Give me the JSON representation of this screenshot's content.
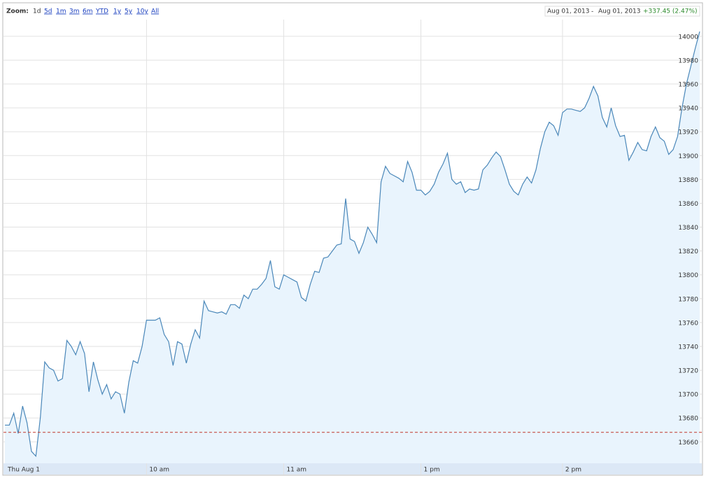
{
  "toolbar": {
    "zoom_label": "Zoom:",
    "zoom_options": [
      "1d",
      "5d",
      "1m",
      "3m",
      "6m",
      "YTD",
      "1y",
      "5y",
      "10y",
      "All"
    ],
    "date_from": "Aug 01, 2013",
    "separator": "-",
    "date_to": "Aug 01, 2013",
    "change": "+337.45 (2.47%)"
  },
  "chart_data": {
    "type": "area",
    "categories": [
      "Thu Aug 1",
      null,
      null,
      null,
      null,
      null,
      null,
      null,
      null,
      null,
      null,
      null,
      null,
      null,
      null,
      null,
      null,
      null,
      null,
      null,
      null,
      null,
      null,
      null,
      null,
      null,
      null,
      null,
      null,
      null,
      null,
      null,
      "10 am",
      null,
      null,
      null,
      null,
      null,
      null,
      null,
      null,
      null,
      null,
      null,
      null,
      null,
      null,
      null,
      null,
      null,
      null,
      null,
      null,
      null,
      null,
      null,
      null,
      null,
      null,
      null,
      null,
      null,
      null,
      "11 am",
      null,
      null,
      null,
      null,
      null,
      null,
      null,
      null,
      null,
      null,
      null,
      null,
      null,
      null,
      null,
      null,
      null,
      null,
      null,
      null,
      null,
      null,
      null,
      null,
      null,
      null,
      null,
      null,
      null,
      null,
      "1 pm",
      null,
      null,
      null,
      null,
      null,
      null,
      null,
      null,
      null,
      null,
      null,
      null,
      null,
      null,
      null,
      null,
      null,
      null,
      null,
      null,
      null,
      null,
      null,
      null,
      null,
      null,
      null,
      null,
      null,
      null,
      null,
      "2 pm",
      null,
      null,
      null,
      null,
      null,
      null,
      null,
      null,
      null,
      null,
      null,
      null,
      null,
      null,
      null,
      null,
      null,
      null,
      null,
      null,
      null,
      null,
      null,
      null,
      null,
      null,
      null,
      null,
      null,
      null,
      null
    ],
    "values": [
      13674,
      13674,
      13684,
      13667,
      13690,
      13676,
      13652,
      13648,
      13680,
      13727,
      13722,
      13720,
      13711,
      13713,
      13745,
      13740,
      13733,
      13744,
      13734,
      13702,
      13727,
      13712,
      13700,
      13708,
      13696,
      13702,
      13700,
      13684,
      13710,
      13728,
      13726,
      13740,
      13762,
      13762,
      13762,
      13764,
      13750,
      13744,
      13724,
      13744,
      13742,
      13726,
      13742,
      13754,
      13747,
      13778,
      13770,
      13769,
      13768,
      13769,
      13767,
      13775,
      13775,
      13772,
      13783,
      13780,
      13788,
      13788,
      13792,
      13797,
      13812,
      13790,
      13788,
      13800,
      13798,
      13796,
      13794,
      13781,
      13778,
      13792,
      13803,
      13802,
      13814,
      13815,
      13820,
      13825,
      13826,
      13864,
      13830,
      13828,
      13818,
      13827,
      13840,
      13834,
      13827,
      13878,
      13891,
      13885,
      13883,
      13881,
      13878,
      13895,
      13886,
      13871,
      13871,
      13867,
      13870,
      13876,
      13886,
      13893,
      13902,
      13880,
      13876,
      13878,
      13869,
      13872,
      13871,
      13872,
      13888,
      13892,
      13898,
      13903,
      13899,
      13888,
      13876,
      13870,
      13867,
      13876,
      13882,
      13877,
      13888,
      13906,
      13920,
      13928,
      13925,
      13917,
      13936,
      13939,
      13939,
      13938,
      13937,
      13940,
      13948,
      13958,
      13950,
      13932,
      13924,
      13940,
      13925,
      13916,
      13917,
      13896,
      13903,
      13911,
      13905,
      13904,
      13916,
      13924,
      13915,
      13912,
      13901,
      13905,
      13916,
      13940,
      13960,
      13975,
      13990,
      14004
    ],
    "color": "#4a87b9",
    "fill_color": "#e9f4fd",
    "ylim": [
      13642,
      14014
    ],
    "yticks": [
      13660,
      13680,
      13700,
      13720,
      13740,
      13760,
      13780,
      13800,
      13820,
      13840,
      13860,
      13880,
      13900,
      13920,
      13940,
      13960,
      13980,
      14000
    ],
    "grid": true,
    "reference_line": 13668,
    "reference_color": "#c0392b"
  }
}
